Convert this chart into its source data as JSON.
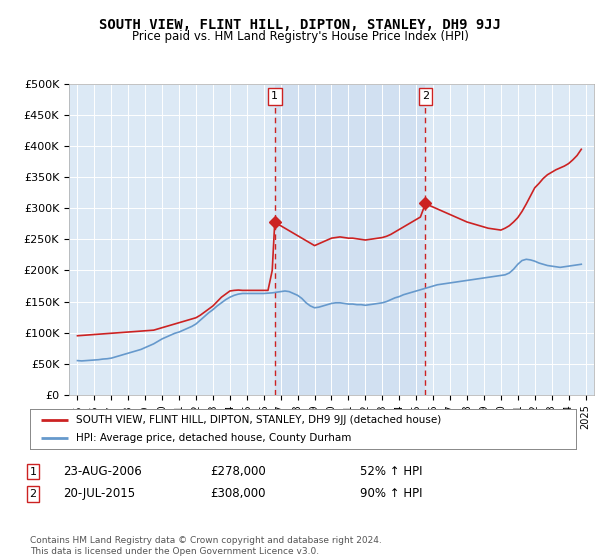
{
  "title": "SOUTH VIEW, FLINT HILL, DIPTON, STANLEY, DH9 9JJ",
  "subtitle": "Price paid vs. HM Land Registry's House Price Index (HPI)",
  "bg_color": "#dce9f5",
  "hpi_color": "#6699cc",
  "price_color": "#cc2222",
  "vline_color": "#cc2222",
  "ylim": [
    0,
    500000
  ],
  "yticks": [
    0,
    50000,
    100000,
    150000,
    200000,
    250000,
    300000,
    350000,
    400000,
    450000,
    500000
  ],
  "ytick_labels": [
    "£0",
    "£50K",
    "£100K",
    "£150K",
    "£200K",
    "£250K",
    "£300K",
    "£350K",
    "£400K",
    "£450K",
    "£500K"
  ],
  "xticks": [
    1995,
    1996,
    1997,
    1998,
    1999,
    2000,
    2001,
    2002,
    2003,
    2004,
    2005,
    2006,
    2007,
    2008,
    2009,
    2010,
    2011,
    2012,
    2013,
    2014,
    2015,
    2016,
    2017,
    2018,
    2019,
    2020,
    2021,
    2022,
    2023,
    2024,
    2025
  ],
  "xlim": [
    1994.5,
    2025.5
  ],
  "marker1_x": 2006.65,
  "marker1_y": 278000,
  "marker2_x": 2015.55,
  "marker2_y": 308000,
  "legend_label_price": "SOUTH VIEW, FLINT HILL, DIPTON, STANLEY, DH9 9JJ (detached house)",
  "legend_label_hpi": "HPI: Average price, detached house, County Durham",
  "annotation1_date": "23-AUG-2006",
  "annotation1_price": "£278,000",
  "annotation1_hpi": "52% ↑ HPI",
  "annotation2_date": "20-JUL-2015",
  "annotation2_price": "£308,000",
  "annotation2_hpi": "90% ↑ HPI",
  "footer": "Contains HM Land Registry data © Crown copyright and database right 2024.\nThis data is licensed under the Open Government Licence v3.0.",
  "hpi_data_x": [
    1995.0,
    1995.25,
    1995.5,
    1995.75,
    1996.0,
    1996.25,
    1996.5,
    1996.75,
    1997.0,
    1997.25,
    1997.5,
    1997.75,
    1998.0,
    1998.25,
    1998.5,
    1998.75,
    1999.0,
    1999.25,
    1999.5,
    1999.75,
    2000.0,
    2000.25,
    2000.5,
    2000.75,
    2001.0,
    2001.25,
    2001.5,
    2001.75,
    2002.0,
    2002.25,
    2002.5,
    2002.75,
    2003.0,
    2003.25,
    2003.5,
    2003.75,
    2004.0,
    2004.25,
    2004.5,
    2004.75,
    2005.0,
    2005.25,
    2005.5,
    2005.75,
    2006.0,
    2006.25,
    2006.5,
    2006.75,
    2007.0,
    2007.25,
    2007.5,
    2007.75,
    2008.0,
    2008.25,
    2008.5,
    2008.75,
    2009.0,
    2009.25,
    2009.5,
    2009.75,
    2010.0,
    2010.25,
    2010.5,
    2010.75,
    2011.0,
    2011.25,
    2011.5,
    2011.75,
    2012.0,
    2012.25,
    2012.5,
    2012.75,
    2013.0,
    2013.25,
    2013.5,
    2013.75,
    2014.0,
    2014.25,
    2014.5,
    2014.75,
    2015.0,
    2015.25,
    2015.5,
    2015.75,
    2016.0,
    2016.25,
    2016.5,
    2016.75,
    2017.0,
    2017.25,
    2017.5,
    2017.75,
    2018.0,
    2018.25,
    2018.5,
    2018.75,
    2019.0,
    2019.25,
    2019.5,
    2019.75,
    2020.0,
    2020.25,
    2020.5,
    2020.75,
    2021.0,
    2021.25,
    2021.5,
    2021.75,
    2022.0,
    2022.25,
    2022.5,
    2022.75,
    2023.0,
    2023.25,
    2023.5,
    2023.75,
    2024.0,
    2024.25,
    2024.5,
    2024.75
  ],
  "hpi_data_y": [
    55000,
    54500,
    55000,
    55500,
    56000,
    56500,
    57500,
    58000,
    59000,
    61000,
    63000,
    65000,
    67000,
    69000,
    71000,
    73000,
    76000,
    79000,
    82000,
    86000,
    90000,
    93000,
    96000,
    99000,
    101000,
    104000,
    107000,
    110000,
    114000,
    120000,
    126000,
    132000,
    137000,
    143000,
    148000,
    153000,
    157000,
    160000,
    162000,
    163000,
    163000,
    163000,
    163000,
    163000,
    163000,
    163500,
    164000,
    165000,
    166000,
    167000,
    166000,
    163000,
    160000,
    155000,
    148000,
    143000,
    140000,
    141000,
    143000,
    145000,
    147000,
    148000,
    148000,
    147000,
    146000,
    146000,
    145000,
    145000,
    144000,
    145000,
    146000,
    147000,
    148000,
    150000,
    153000,
    156000,
    158000,
    161000,
    163000,
    165000,
    167000,
    169000,
    171000,
    173000,
    175000,
    177000,
    178000,
    179000,
    180000,
    181000,
    182000,
    183000,
    184000,
    185000,
    186000,
    187000,
    188000,
    189000,
    190000,
    191000,
    192000,
    193000,
    196000,
    202000,
    210000,
    216000,
    218000,
    217000,
    215000,
    212000,
    210000,
    208000,
    207000,
    206000,
    205000,
    206000,
    207000,
    208000,
    209000,
    210000
  ],
  "price_data_x": [
    1995.0,
    1995.25,
    1995.5,
    1995.75,
    1996.0,
    1996.25,
    1996.5,
    1996.75,
    1997.0,
    1997.25,
    1997.5,
    1997.75,
    1998.0,
    1998.25,
    1998.5,
    1998.75,
    1999.0,
    1999.25,
    1999.5,
    1999.75,
    2000.0,
    2000.25,
    2000.5,
    2000.75,
    2001.0,
    2001.25,
    2001.5,
    2001.75,
    2002.0,
    2002.25,
    2002.5,
    2002.75,
    2003.0,
    2003.25,
    2003.5,
    2003.75,
    2004.0,
    2004.25,
    2004.5,
    2004.75,
    2005.0,
    2005.25,
    2005.5,
    2005.75,
    2006.0,
    2006.25,
    2006.5,
    2006.65,
    2006.75,
    2007.0,
    2007.25,
    2007.5,
    2007.75,
    2008.0,
    2008.25,
    2008.5,
    2008.75,
    2009.0,
    2009.25,
    2009.5,
    2009.75,
    2010.0,
    2010.25,
    2010.5,
    2010.75,
    2011.0,
    2011.25,
    2011.5,
    2011.75,
    2012.0,
    2012.25,
    2012.5,
    2012.75,
    2013.0,
    2013.25,
    2013.5,
    2013.75,
    2014.0,
    2014.25,
    2014.5,
    2014.75,
    2015.0,
    2015.25,
    2015.55,
    2015.75,
    2016.0,
    2016.25,
    2016.5,
    2016.75,
    2017.0,
    2017.25,
    2017.5,
    2017.75,
    2018.0,
    2018.25,
    2018.5,
    2018.75,
    2019.0,
    2019.25,
    2019.5,
    2019.75,
    2020.0,
    2020.25,
    2020.5,
    2020.75,
    2021.0,
    2021.25,
    2021.5,
    2021.75,
    2022.0,
    2022.25,
    2022.5,
    2022.75,
    2023.0,
    2023.25,
    2023.5,
    2023.75,
    2024.0,
    2024.25,
    2024.5,
    2024.75
  ],
  "price_data_y": [
    95000,
    95500,
    96000,
    96500,
    97000,
    97500,
    98000,
    98500,
    99000,
    99500,
    100000,
    100500,
    101000,
    101500,
    102000,
    102500,
    103000,
    103500,
    104000,
    106000,
    108000,
    110000,
    112000,
    114000,
    116000,
    118000,
    120000,
    122000,
    124000,
    128000,
    133000,
    138000,
    143000,
    150000,
    157000,
    162000,
    167000,
    168000,
    168500,
    168000,
    168000,
    168000,
    168000,
    168000,
    168000,
    168000,
    200000,
    278000,
    275000,
    272000,
    268000,
    264000,
    260000,
    256000,
    252000,
    248000,
    244000,
    240000,
    243000,
    246000,
    249000,
    252000,
    253000,
    254000,
    253000,
    252000,
    252000,
    251000,
    250000,
    249000,
    250000,
    251000,
    252000,
    253000,
    255000,
    258000,
    262000,
    266000,
    270000,
    274000,
    278000,
    282000,
    286000,
    308000,
    305000,
    302000,
    299000,
    296000,
    293000,
    290000,
    287000,
    284000,
    281000,
    278000,
    276000,
    274000,
    272000,
    270000,
    268000,
    267000,
    266000,
    265000,
    268000,
    272000,
    278000,
    285000,
    295000,
    307000,
    320000,
    333000,
    340000,
    348000,
    354000,
    358000,
    362000,
    365000,
    368000,
    372000,
    378000,
    385000,
    395000
  ]
}
